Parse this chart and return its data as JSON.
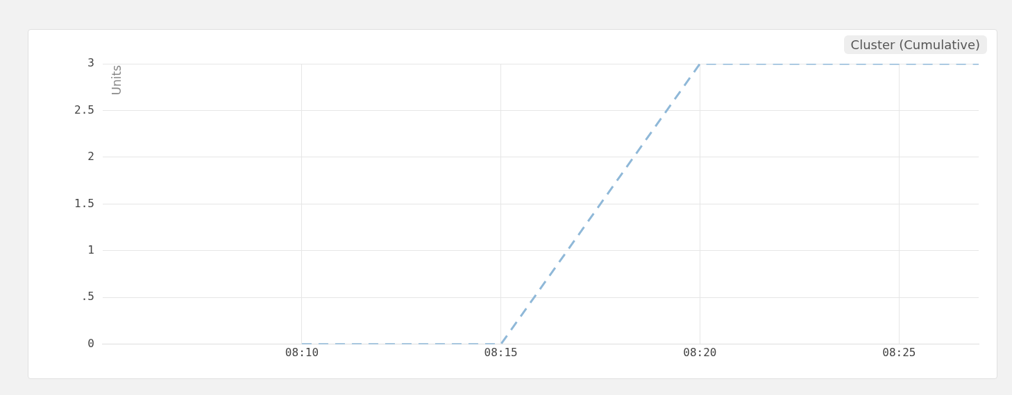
{
  "chart_data": {
    "type": "line",
    "title": "Cluster (Cumulative)",
    "ylabel": "Units",
    "x": [
      8.1667,
      8.25,
      8.3333,
      8.4167,
      8.45
    ],
    "series": [
      {
        "color": "#8fb8d8",
        "values": [
          0,
          0,
          3,
          3,
          3
        ]
      }
    ],
    "xlim": [
      8.0833,
      8.45
    ],
    "xticks": [
      {
        "value": 8.1667,
        "label": "08:10"
      },
      {
        "value": 8.25,
        "label": "08:15"
      },
      {
        "value": 8.3333,
        "label": "08:20"
      },
      {
        "value": 8.4167,
        "label": "08:25"
      }
    ],
    "ylim": [
      0,
      3
    ],
    "yticks": [
      0,
      {
        "value": 0.5,
        "label": ".5"
      },
      1,
      1.5,
      2,
      2.5,
      3
    ],
    "grid": true,
    "legend": false,
    "marker": "none",
    "line_style": "dashed"
  }
}
